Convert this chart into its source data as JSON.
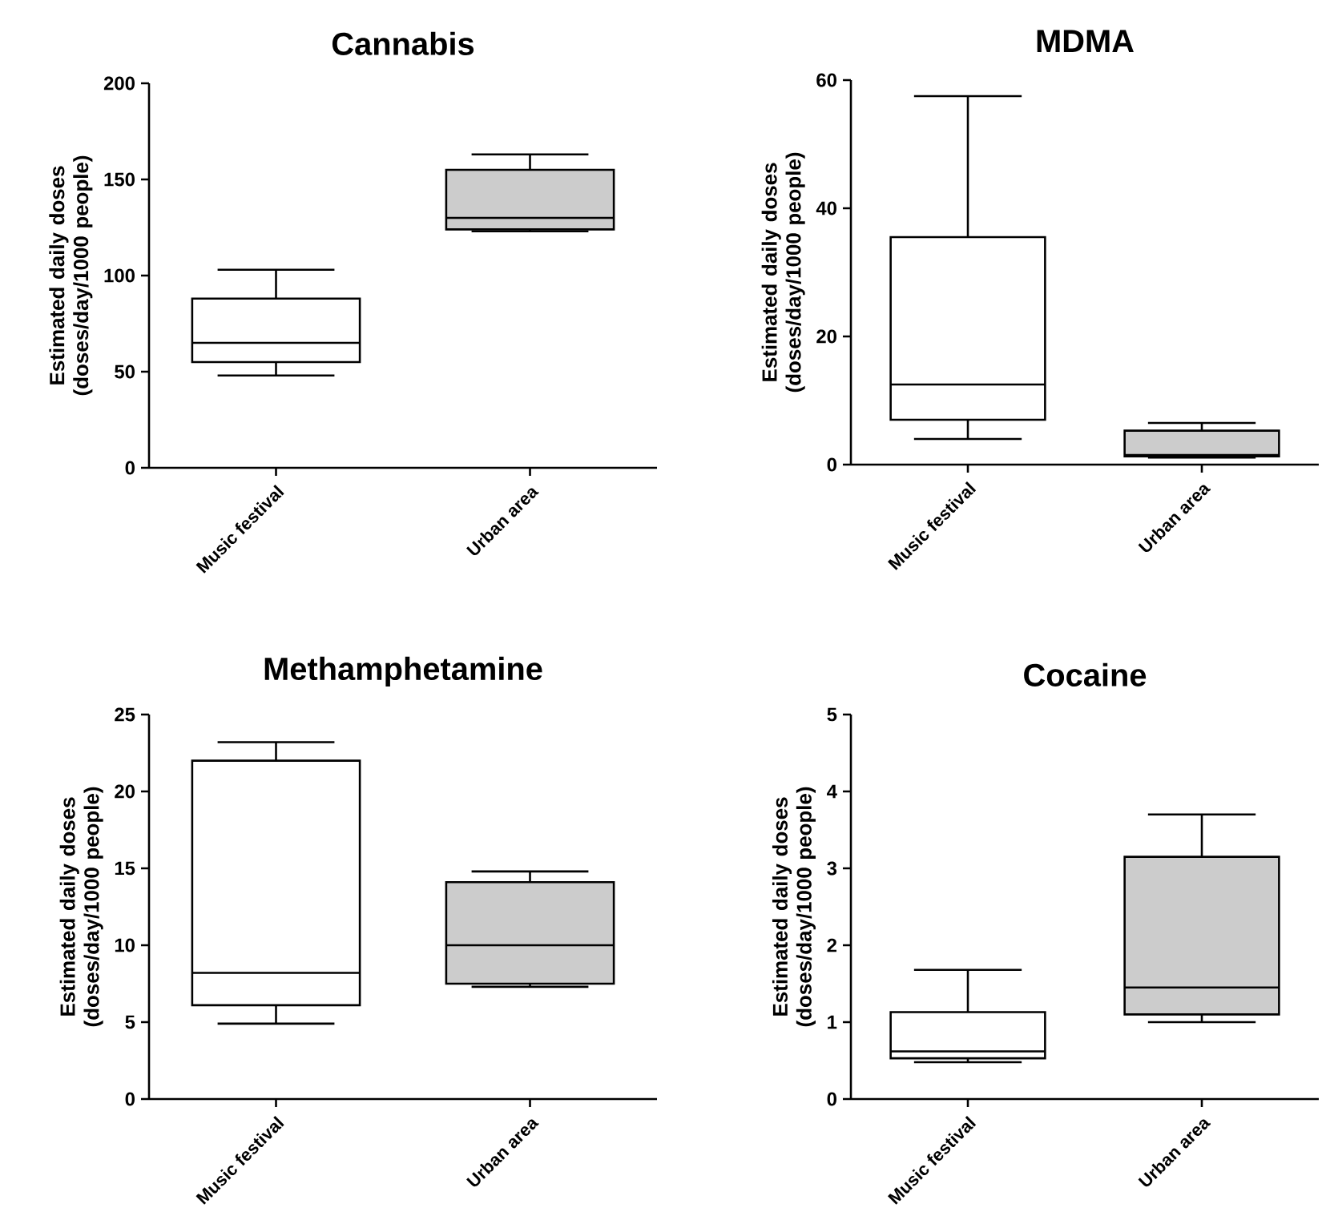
{
  "chart_data": [
    {
      "type": "box",
      "title": "Cannabis",
      "ylabel": "Estimated daily doses (doses/day/1000 people)",
      "categories": [
        "Music festival",
        "Urban area"
      ],
      "colors": [
        "#ffffff",
        "#cccccc"
      ],
      "boxes": [
        {
          "low": 48,
          "q1": 55,
          "median": 65,
          "q3": 88,
          "high": 103
        },
        {
          "low": 123,
          "q1": 124,
          "median": 130,
          "q3": 155,
          "high": 163
        }
      ],
      "ylim": [
        0,
        200
      ],
      "yticks": [
        0,
        50,
        100,
        150,
        200
      ]
    },
    {
      "type": "box",
      "title": "MDMA",
      "ylabel": "Estimated daily doses (doses/day/1000 people)",
      "categories": [
        "Music festival",
        "Urban area"
      ],
      "colors": [
        "#ffffff",
        "#cccccc"
      ],
      "boxes": [
        {
          "low": 4,
          "q1": 7,
          "median": 12.5,
          "q3": 35.5,
          "high": 57.5
        },
        {
          "low": 1.1,
          "q1": 1.3,
          "median": 1.5,
          "q3": 5.3,
          "high": 6.5
        }
      ],
      "ylim": [
        0,
        60
      ],
      "yticks": [
        0,
        20,
        40,
        60
      ]
    },
    {
      "type": "box",
      "title": "Methamphetamine",
      "ylabel": "Estimated daily doses (doses/day/1000 people)",
      "categories": [
        "Music festival",
        "Urban area"
      ],
      "colors": [
        "#ffffff",
        "#cccccc"
      ],
      "boxes": [
        {
          "low": 4.9,
          "q1": 6.1,
          "median": 8.2,
          "q3": 22,
          "high": 23.2
        },
        {
          "low": 7.3,
          "q1": 7.5,
          "median": 10,
          "q3": 14.1,
          "high": 14.8
        }
      ],
      "ylim": [
        0,
        25
      ],
      "yticks": [
        0,
        5,
        10,
        15,
        20,
        25
      ]
    },
    {
      "type": "box",
      "title": "Cocaine",
      "ylabel": "Estimated daily doses (doses/day/1000 people)",
      "categories": [
        "Music festival",
        "Urban area"
      ],
      "colors": [
        "#ffffff",
        "#cccccc"
      ],
      "boxes": [
        {
          "low": 0.48,
          "q1": 0.53,
          "median": 0.62,
          "q3": 1.13,
          "high": 1.68
        },
        {
          "low": 1.0,
          "q1": 1.1,
          "median": 1.45,
          "q3": 3.15,
          "high": 3.7
        }
      ],
      "ylim": [
        0,
        5
      ],
      "yticks": [
        0,
        1,
        2,
        3,
        4,
        5
      ]
    }
  ]
}
